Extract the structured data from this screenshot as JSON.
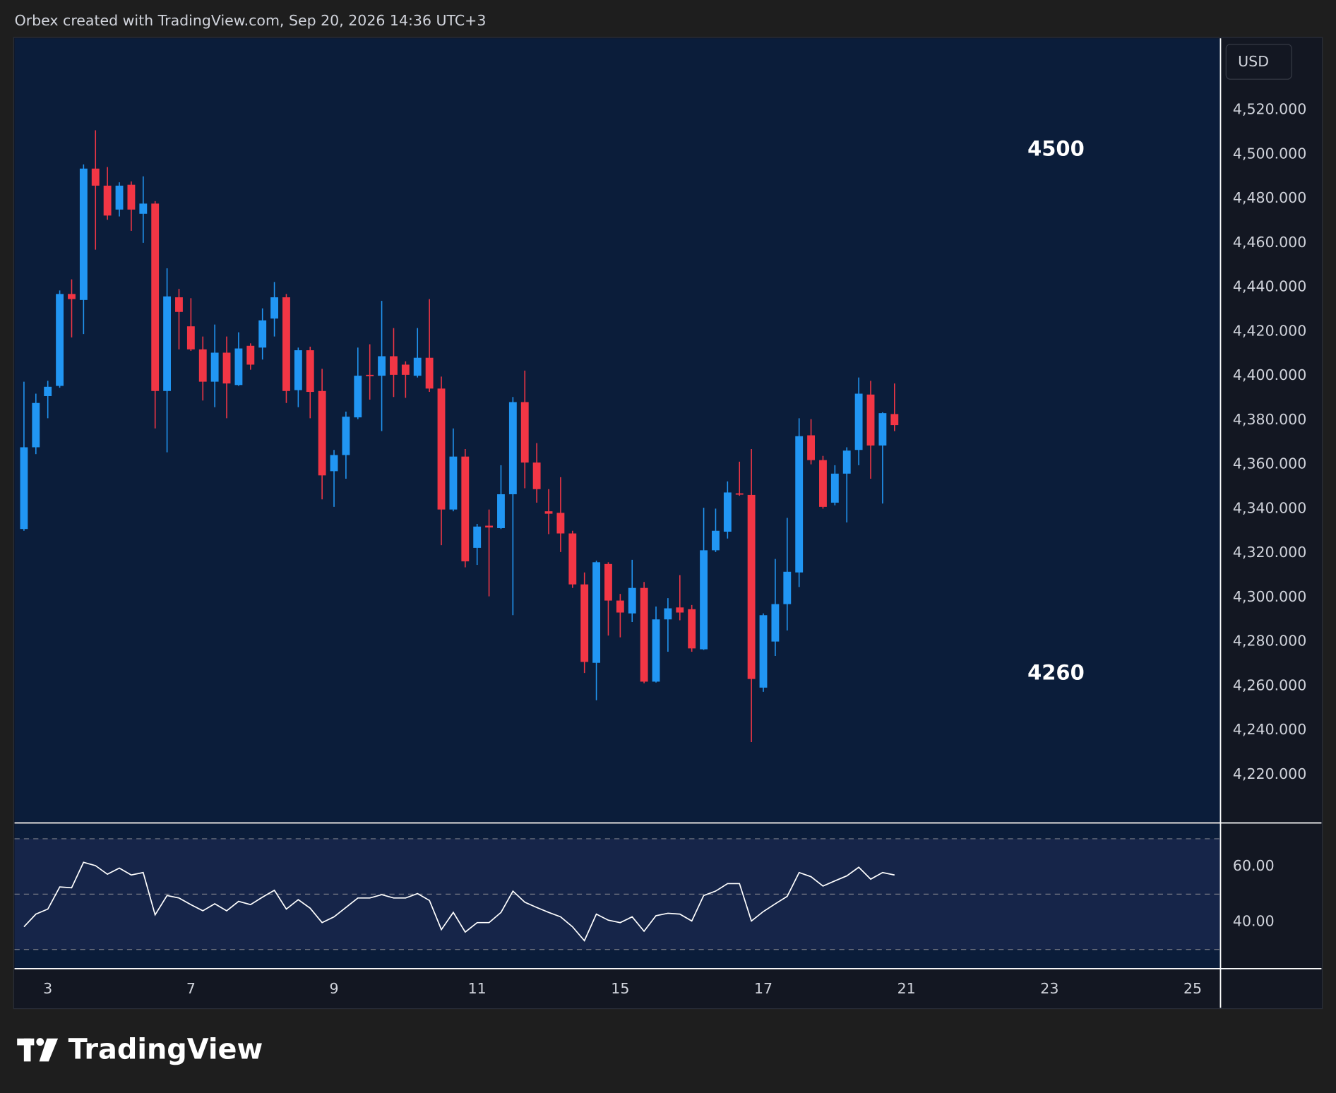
{
  "header": "Orbex created with TradingView.com, Sep 20, 2026 14:36 UTC+3",
  "currency": "USD",
  "logo": "TradingView",
  "chart_data": [
    {
      "type": "candlestick",
      "up_color": "#2196f3",
      "down_color": "#f23645",
      "annotations": [
        "4500",
        "4260"
      ],
      "xlim": [
        -0.79,
        100.3
      ],
      "xticks": [
        {
          "value": 2,
          "label": "3"
        },
        {
          "value": 14,
          "label": "7"
        },
        {
          "value": 26,
          "label": "9"
        },
        {
          "value": 38,
          "label": "11"
        },
        {
          "value": 50,
          "label": "15"
        },
        {
          "value": 62,
          "label": "17"
        },
        {
          "value": 74,
          "label": "21"
        },
        {
          "value": 86,
          "label": "23"
        },
        {
          "value": 98,
          "label": "25"
        }
      ],
      "ylim": [
        4198.5,
        4552.3
      ],
      "yticks": [
        {
          "value": 4220,
          "label": "4,220.000"
        },
        {
          "value": 4240,
          "label": "4,240.000"
        },
        {
          "value": 4260,
          "label": "4,260.000"
        },
        {
          "value": 4280,
          "label": "4,280.000"
        },
        {
          "value": 4300,
          "label": "4,300.000"
        },
        {
          "value": 4320,
          "label": "4,320.000"
        },
        {
          "value": 4340,
          "label": "4,340.000"
        },
        {
          "value": 4360,
          "label": "4,360.000"
        },
        {
          "value": 4380,
          "label": "4,380.000"
        },
        {
          "value": 4400,
          "label": "4,400.000"
        },
        {
          "value": 4420,
          "label": "4,420.000"
        },
        {
          "value": 4440,
          "label": "4,440.000"
        },
        {
          "value": 4460,
          "label": "4,460.000"
        },
        {
          "value": 4480,
          "label": "4,480.000"
        },
        {
          "value": 4500,
          "label": "4,500.000"
        },
        {
          "value": 4520,
          "label": "4,520.000"
        }
      ],
      "open": [
        4330.8,
        4367.7,
        4390.8,
        4395.4,
        4436.9,
        4434.2,
        4493.5,
        4485.8,
        4475,
        4486.2,
        4473.1,
        4477.7,
        4393.1,
        4435.4,
        4422.3,
        4411.9,
        4397.3,
        4410.4,
        4395.8,
        4413.5,
        4412.7,
        4425.8,
        4435.4,
        4393.5,
        4411.5,
        4393.1,
        4356.9,
        4364.2,
        4381.2,
        4400.4,
        4400,
        4408.8,
        4405,
        4400,
        4408.1,
        4394.2,
        4339.6,
        4363.5,
        4322.3,
        4332.3,
        4331.2,
        4346.5,
        4388.1,
        4360.8,
        4338.8,
        4338.1,
        4328.8,
        4305.8,
        4270.4,
        4315,
        4298.5,
        4292.7,
        4304.2,
        4261.9,
        4290,
        4295.4,
        4294.6,
        4276.5,
        4321.2,
        4329.6,
        4346.9,
        4346.2,
        4259.2,
        4280,
        4296.9,
        4311.2,
        4373.1,
        4361.9,
        4342.7,
        4355.8,
        4366.5,
        4391.5,
        4368.5,
        4382.7
      ],
      "high": [
        4397.3,
        4391.9,
        4397.7,
        4438.5,
        4443.5,
        4495.4,
        4510.8,
        4494.2,
        4487.3,
        4487.7,
        4490,
        4478.8,
        4448.5,
        4439.2,
        4435,
        4417.7,
        4423.1,
        4417.7,
        4419.6,
        4414.6,
        4430.4,
        4442.3,
        4436.9,
        4412.7,
        4413.1,
        4403.1,
        4366.5,
        4383.8,
        4412.7,
        4414.2,
        4433.8,
        4421.5,
        4406.5,
        4421.5,
        4434.6,
        4399.6,
        4376.2,
        4366.9,
        4333.1,
        4339.6,
        4359.6,
        4390.4,
        4402.3,
        4369.6,
        4348.8,
        4354.2,
        4330,
        4311.2,
        4316.5,
        4315.8,
        4301.5,
        4316.9,
        4306.9,
        4295.8,
        4299.6,
        4310,
        4296.5,
        4340.4,
        4340,
        4352.3,
        4361.2,
        4366.9,
        4292.7,
        4317.3,
        4335.8,
        4380.8,
        4380.4,
        4363.8,
        4359.6,
        4367.7,
        4399.2,
        4397.7,
        4383.5,
        4396.5
      ],
      "low": [
        4330,
        4364.6,
        4380.8,
        4394.6,
        4417.3,
        4418.8,
        4456.9,
        4470.4,
        4471.9,
        4465.4,
        4460,
        4376.2,
        4365.4,
        4411.9,
        4411.2,
        4388.8,
        4385.8,
        4380.8,
        4395.4,
        4402.7,
        4407.3,
        4417.7,
        4387.7,
        4385.8,
        4380.8,
        4344.2,
        4340.8,
        4353.5,
        4380.4,
        4389.2,
        4375,
        4390.4,
        4390,
        4399.2,
        4392.7,
        4323.5,
        4338.8,
        4313.5,
        4314.6,
        4300.4,
        4330.8,
        4291.9,
        4349.2,
        4342.7,
        4328.5,
        4320.4,
        4304.2,
        4265.8,
        4253.5,
        4282.7,
        4281.9,
        4288.8,
        4261.2,
        4261.5,
        4275.4,
        4289.6,
        4275.4,
        4276.2,
        4320.4,
        4326.5,
        4345.8,
        4234.6,
        4257.3,
        4273.5,
        4285,
        4304.6,
        4360,
        4340,
        4341.5,
        4333.8,
        4359.6,
        4353.5,
        4342.3,
        4375
      ],
      "close": [
        4367.7,
        4387.7,
        4395,
        4436.9,
        4434.6,
        4493.5,
        4485.8,
        4472.3,
        4485.8,
        4475,
        4477.7,
        4393.1,
        4435.8,
        4428.8,
        4411.9,
        4397.3,
        4410.4,
        4396.5,
        4412.3,
        4405,
        4425,
        4435.4,
        4393.1,
        4411.5,
        4392.7,
        4355,
        4364.2,
        4381.5,
        4400,
        4400,
        4408.8,
        4400.4,
        4400.4,
        4408.1,
        4394.2,
        4339.6,
        4363.5,
        4316.2,
        4331.9,
        4331.5,
        4346.5,
        4388.1,
        4360.8,
        4348.8,
        4337.7,
        4328.8,
        4305.8,
        4270.8,
        4315.8,
        4298.5,
        4293.1,
        4304.2,
        4261.9,
        4290,
        4295,
        4293.1,
        4276.9,
        4321.2,
        4330,
        4347.3,
        4346.5,
        4263.1,
        4291.9,
        4296.9,
        4311.5,
        4372.7,
        4361.9,
        4340.8,
        4355.8,
        4366.2,
        4391.9,
        4368.5,
        4383.1,
        4377.7
      ]
    },
    {
      "type": "line",
      "color": "#ffffff",
      "ylim": [
        23.4,
        75.1
      ],
      "yticks": [
        {
          "value": 40,
          "label": "40.00"
        },
        {
          "value": 60,
          "label": "60.00"
        }
      ],
      "levels": [
        30,
        50,
        70
      ],
      "values": [
        38.2,
        42.8,
        44.6,
        52.6,
        52.3,
        61.5,
        60.3,
        57.2,
        59.4,
        56.9,
        57.8,
        42.5,
        49.5,
        48.6,
        46.2,
        44,
        46.5,
        44,
        47.4,
        46.2,
        48.9,
        51.4,
        44.6,
        48,
        44.9,
        39.7,
        41.8,
        45.2,
        48.6,
        48.6,
        49.8,
        48.6,
        48.6,
        50.2,
        47.7,
        37.2,
        43.4,
        36.3,
        39.7,
        39.7,
        43.4,
        51.1,
        47.1,
        45.2,
        43.4,
        41.8,
        38.2,
        33.2,
        42.8,
        40.6,
        39.7,
        41.8,
        36.6,
        42.2,
        43.1,
        42.8,
        40.3,
        49.5,
        51.1,
        53.8,
        53.8,
        40.3,
        43.7,
        46.5,
        49.2,
        57.8,
        56.3,
        52.9,
        54.8,
        56.6,
        59.7,
        55.4,
        57.8,
        56.9
      ]
    }
  ]
}
